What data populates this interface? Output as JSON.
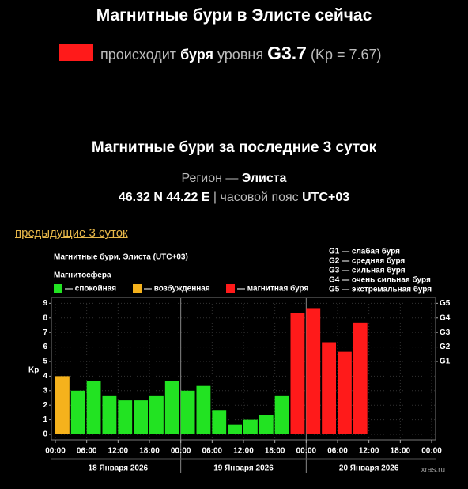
{
  "header": {
    "title": "Магнитные бури в Элисте сейчас",
    "status": {
      "prefix": "происходит",
      "word": "буря",
      "suffix": "уровня",
      "level": "G3.7",
      "kp": "(Kp = 7.67)",
      "color": "#ff1a1a"
    }
  },
  "summary": {
    "title": "Магнитные бури за последние 3 суток",
    "region_label": "Регион —",
    "region": "Элиста",
    "coords": "46.32 N 44.22 E",
    "separator": "|",
    "tz_label": "часовой пояс",
    "tz": "UTC+03"
  },
  "link": "предыдущие 3 суток",
  "chart_data": {
    "type": "bar",
    "title": "Магнитные бури, Элиста (UTC+03)",
    "legend_title": "Магнитосфера",
    "legend": [
      {
        "name": "— спокойная",
        "color": "#22e322"
      },
      {
        "name": "— возбужденная",
        "color": "#f5b21c"
      },
      {
        "name": "— магнитная буря",
        "color": "#ff1a1a"
      }
    ],
    "g_legend": [
      "G1 — слабая буря",
      "G2 — средняя буря",
      "G3 — сильная буря",
      "G4 — очень сильная буря",
      "G5 — экстремальная буря"
    ],
    "ylabel": "Kp",
    "x": [
      0,
      3,
      6,
      9,
      12,
      15,
      18,
      21,
      24,
      27,
      30,
      33,
      36,
      39,
      42,
      45,
      48,
      51,
      54,
      57,
      60,
      63,
      66,
      69
    ],
    "values": [
      4.0,
      3.0,
      3.67,
      2.67,
      2.33,
      2.33,
      2.67,
      3.67,
      3.0,
      3.33,
      1.67,
      0.67,
      1.0,
      1.33,
      2.67,
      8.33,
      8.67,
      6.33,
      5.67,
      7.67,
      null,
      null,
      null,
      null
    ],
    "colors": [
      "#f5b21c",
      "#22e322",
      "#22e322",
      "#22e322",
      "#22e322",
      "#22e322",
      "#22e322",
      "#22e322",
      "#22e322",
      "#22e322",
      "#22e322",
      "#22e322",
      "#22e322",
      "#22e322",
      "#22e322",
      "#ff1a1a",
      "#ff1a1a",
      "#ff1a1a",
      "#ff1a1a",
      "#ff1a1a",
      null,
      null,
      null,
      null
    ],
    "xlim": [
      0,
      72
    ],
    "ylim": [
      0,
      9.4
    ],
    "xticks": [
      {
        "value": 0,
        "label": "00:00"
      },
      {
        "value": 6,
        "label": "06:00"
      },
      {
        "value": 12,
        "label": "12:00"
      },
      {
        "value": 18,
        "label": "18:00"
      },
      {
        "value": 24,
        "label": "00:00"
      },
      {
        "value": 30,
        "label": "06:00"
      },
      {
        "value": 36,
        "label": "12:00"
      },
      {
        "value": 42,
        "label": "18:00"
      },
      {
        "value": 48,
        "label": "00:00"
      },
      {
        "value": 54,
        "label": "06:00"
      },
      {
        "value": 60,
        "label": "12:00"
      },
      {
        "value": 66,
        "label": "18:00"
      },
      {
        "value": 72,
        "label": "00:00"
      }
    ],
    "yticks": [
      0,
      1,
      2,
      3,
      4,
      5,
      6,
      7,
      8,
      9
    ],
    "y2ticks": [
      {
        "value": 5,
        "label": "G1"
      },
      {
        "value": 6,
        "label": "G2"
      },
      {
        "value": 7,
        "label": "G3"
      },
      {
        "value": 8,
        "label": "G4"
      },
      {
        "value": 9,
        "label": "G5"
      }
    ],
    "day_labels": [
      {
        "value": 12,
        "label": "18 Января 2026"
      },
      {
        "value": 36,
        "label": "19 Января 2026"
      },
      {
        "value": 60,
        "label": "20 Января 2026"
      }
    ],
    "grid": true,
    "credit": "xras.ru"
  }
}
